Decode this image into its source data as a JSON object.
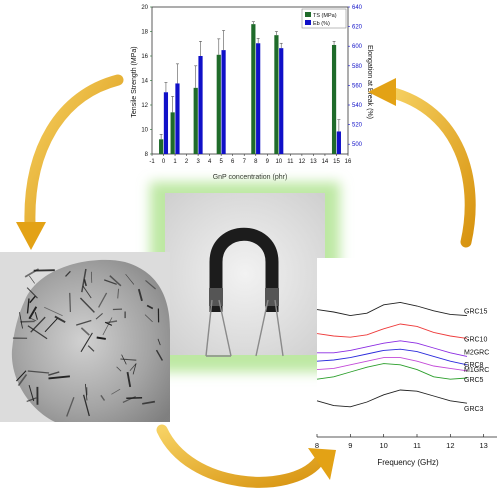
{
  "colors": {
    "ts_bar": "#1f6b2a",
    "eb_bar": "#1010c8",
    "arrow_gold": "#e9b020",
    "glow": "#a6e38a",
    "rl_curves": [
      "#222222",
      "#ee3b3b",
      "#8b2be2",
      "#2b2bdc",
      "#c34ad8",
      "#2a9e2a"
    ]
  },
  "chart_data": [
    {
      "type": "bar",
      "x_label": "GnP concentration (phr)",
      "y_label_left": "Tensile Strength (MPa)",
      "y_label_right": "Elongation at Break (%)",
      "x_ticks": [
        "-1",
        "0",
        "1",
        "2",
        "3",
        "4",
        "5",
        "6",
        "7",
        "8",
        "9",
        "10",
        "11",
        "12",
        "13",
        "14",
        "15",
        "16"
      ],
      "y_left_ticks": [
        "8",
        "10",
        "12",
        "14",
        "16",
        "18",
        "20"
      ],
      "y_right_ticks": [
        "500",
        "520",
        "540",
        "560",
        "580",
        "600",
        "620",
        "640"
      ],
      "ylim_left": [
        8,
        20
      ],
      "ylim_right": [
        490,
        640
      ],
      "legend_placement": "top-right",
      "series": [
        {
          "name": "TS (MPa)",
          "axis": "left",
          "x": [
            0,
            1,
            3,
            5,
            8,
            10,
            15
          ],
          "values": [
            9.2,
            11.4,
            13.4,
            16.1,
            18.6,
            17.7,
            16.9
          ],
          "errors": [
            0.4,
            1.3,
            1.8,
            1.3,
            0.2,
            0.3,
            0.3
          ]
        },
        {
          "name": "Eb (%)",
          "axis": "right",
          "x": [
            0,
            1,
            3,
            5,
            8,
            10,
            15
          ],
          "values": [
            553,
            562,
            590,
            596,
            603,
            598,
            513
          ],
          "errors": [
            10,
            20,
            15,
            20,
            5,
            5,
            12
          ]
        }
      ]
    },
    {
      "type": "line",
      "x_label": "Frequency (GHz)",
      "x_ticks": [
        "8",
        "9",
        "10",
        "11",
        "12",
        "13"
      ],
      "xlim": [
        8,
        13.4
      ],
      "series": [
        {
          "name": "GRC15",
          "x": [
            8,
            8.5,
            9,
            9.5,
            10,
            10.5,
            11,
            11.5,
            12,
            12.5
          ],
          "values": [
            0.92,
            0.9,
            0.87,
            0.89,
            0.96,
            0.98,
            0.95,
            0.91,
            0.88,
            0.87
          ]
        },
        {
          "name": "GRC10",
          "x": [
            8,
            8.5,
            9,
            9.5,
            10,
            10.5,
            11,
            11.5,
            12,
            12.5
          ],
          "values": [
            0.72,
            0.7,
            0.69,
            0.71,
            0.76,
            0.8,
            0.78,
            0.73,
            0.7,
            0.68
          ]
        },
        {
          "name": "M2GRC",
          "x": [
            8,
            8.5,
            9,
            9.5,
            10,
            10.5,
            11,
            11.5,
            12,
            12.5
          ],
          "values": [
            0.56,
            0.56,
            0.58,
            0.61,
            0.64,
            0.66,
            0.64,
            0.6,
            0.56,
            0.53
          ]
        },
        {
          "name": "GRC8",
          "x": [
            8,
            8.5,
            9,
            9.5,
            10,
            10.5,
            11,
            11.5,
            12,
            12.5
          ],
          "values": [
            0.49,
            0.5,
            0.52,
            0.55,
            0.58,
            0.59,
            0.57,
            0.53,
            0.49,
            0.46
          ]
        },
        {
          "name": "M1GRC",
          "x": [
            8,
            8.5,
            9,
            9.5,
            10,
            10.5,
            11,
            11.5,
            12,
            12.5
          ],
          "values": [
            0.42,
            0.43,
            0.46,
            0.49,
            0.52,
            0.52,
            0.49,
            0.45,
            0.43,
            0.41
          ]
        },
        {
          "name": "GRC5",
          "x": [
            8,
            8.5,
            9,
            9.5,
            10,
            10.5,
            11,
            11.5,
            12,
            12.5
          ],
          "values": [
            0.34,
            0.36,
            0.4,
            0.44,
            0.47,
            0.46,
            0.42,
            0.36,
            0.34,
            0.35
          ]
        },
        {
          "name": "GRC3",
          "x": [
            8,
            8.5,
            9,
            9.5,
            10,
            10.5,
            11,
            11.5,
            12,
            12.5
          ],
          "values": [
            0.16,
            0.12,
            0.11,
            0.15,
            0.21,
            0.25,
            0.24,
            0.2,
            0.16,
            0.14
          ]
        }
      ]
    }
  ]
}
